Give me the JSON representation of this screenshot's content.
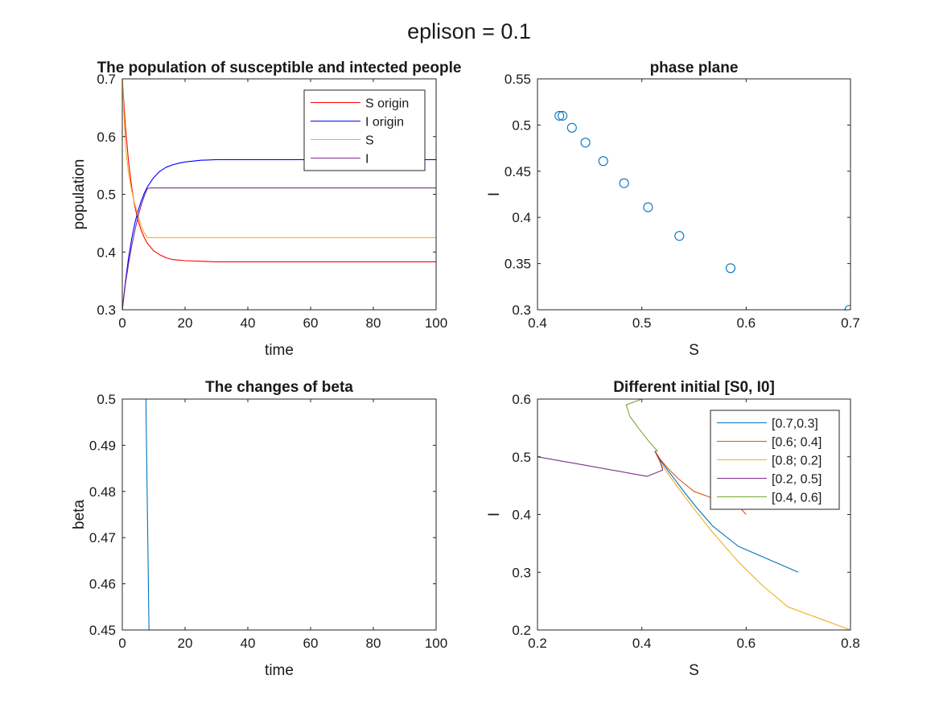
{
  "figure": {
    "title": "eplison = 0.1"
  },
  "chart_data": [
    {
      "type": "line",
      "title": "The population of susceptible and intected people",
      "xlabel": "time",
      "ylabel": "population",
      "xlim": [
        0,
        100
      ],
      "ylim": [
        0.3,
        0.7
      ],
      "xticks": [
        0,
        20,
        40,
        60,
        80,
        100
      ],
      "yticks": [
        0.3,
        0.4,
        0.5,
        0.6,
        0.7
      ],
      "grid": false,
      "legend": "top-right",
      "series": [
        {
          "name": "S origin",
          "color": "#ff0000",
          "x": [
            0,
            1,
            2,
            3,
            4,
            5,
            6,
            7,
            8,
            10,
            12,
            14,
            16,
            18,
            20,
            25,
            30,
            40,
            50,
            60,
            70,
            80,
            90,
            100
          ],
          "y": [
            0.7,
            0.617,
            0.556,
            0.512,
            0.479,
            0.455,
            0.438,
            0.425,
            0.415,
            0.402,
            0.395,
            0.39,
            0.387,
            0.386,
            0.385,
            0.384,
            0.383,
            0.383,
            0.383,
            0.383,
            0.383,
            0.383,
            0.383,
            0.383
          ]
        },
        {
          "name": "I origin",
          "color": "#0000ff",
          "x": [
            0,
            1,
            2,
            3,
            4,
            5,
            6,
            7,
            8,
            10,
            12,
            14,
            16,
            18,
            20,
            25,
            30,
            40,
            50,
            60,
            70,
            80,
            90,
            100
          ],
          "y": [
            0.3,
            0.349,
            0.39,
            0.423,
            0.45,
            0.471,
            0.488,
            0.502,
            0.513,
            0.529,
            0.54,
            0.547,
            0.551,
            0.554,
            0.556,
            0.559,
            0.56,
            0.56,
            0.56,
            0.56,
            0.56,
            0.56,
            0.56,
            0.56
          ]
        },
        {
          "name": "S",
          "color": "#edb120",
          "x": [
            0,
            1,
            2,
            3,
            4,
            5,
            6,
            7,
            8,
            9,
            10,
            20,
            40,
            60,
            80,
            100
          ],
          "y": [
            0.7,
            0.585,
            0.535,
            0.506,
            0.483,
            0.463,
            0.446,
            0.433,
            0.425,
            0.425,
            0.425,
            0.425,
            0.425,
            0.425,
            0.425,
            0.425
          ]
        },
        {
          "name": "I",
          "color": "#7e2f8e",
          "x": [
            0,
            1,
            2,
            3,
            4,
            5,
            6,
            7,
            8,
            9,
            10,
            20,
            40,
            60,
            80,
            100
          ],
          "y": [
            0.3,
            0.345,
            0.38,
            0.411,
            0.437,
            0.461,
            0.481,
            0.497,
            0.51,
            0.511,
            0.511,
            0.511,
            0.511,
            0.511,
            0.511,
            0.511
          ]
        }
      ]
    },
    {
      "type": "scatter",
      "title": "phase plane",
      "xlabel": "S",
      "ylabel": "I",
      "xlim": [
        0.4,
        0.7
      ],
      "ylim": [
        0.3,
        0.55
      ],
      "xticks": [
        0.4,
        0.5,
        0.6,
        0.7
      ],
      "yticks": [
        0.3,
        0.35,
        0.4,
        0.45,
        0.5,
        0.55
      ],
      "grid": false,
      "series": [
        {
          "color": "#0072bd",
          "x": [
            0.699,
            0.585,
            0.536,
            0.506,
            0.483,
            0.463,
            0.446,
            0.433,
            0.424,
            0.421
          ],
          "y": [
            0.3,
            0.345,
            0.38,
            0.411,
            0.437,
            0.461,
            0.481,
            0.497,
            0.51,
            0.51
          ]
        }
      ]
    },
    {
      "type": "line",
      "title": "The changes of beta",
      "xlabel": "time",
      "ylabel": "beta",
      "xlim": [
        0,
        100
      ],
      "ylim": [
        0.45,
        0.5
      ],
      "xticks": [
        0,
        20,
        40,
        60,
        80,
        100
      ],
      "yticks": [
        0.45,
        0.46,
        0.47,
        0.48,
        0.49,
        0.5
      ],
      "grid": false,
      "series": [
        {
          "color": "#0072bd",
          "x": [
            0,
            7.5,
            8.5,
            100
          ],
          "y": [
            0.5,
            0.5,
            0.45,
            0.45
          ]
        }
      ]
    },
    {
      "type": "line",
      "title": "Different initial [S0, I0]",
      "xlabel": "S",
      "ylabel": "I",
      "xlim": [
        0.2,
        0.8
      ],
      "ylim": [
        0.2,
        0.6
      ],
      "xticks": [
        0.2,
        0.4,
        0.6,
        0.8
      ],
      "yticks": [
        0.2,
        0.3,
        0.4,
        0.5,
        0.6
      ],
      "grid": false,
      "legend": "top-right",
      "series": [
        {
          "name": "[0.7,0.3]",
          "color": "#0072bd",
          "x": [
            0.7,
            0.585,
            0.536,
            0.506,
            0.483,
            0.463,
            0.446,
            0.433,
            0.425
          ],
          "y": [
            0.3,
            0.345,
            0.38,
            0.411,
            0.437,
            0.461,
            0.481,
            0.497,
            0.51
          ]
        },
        {
          "name": "[0.6; 0.4]",
          "color": "#d95319",
          "x": [
            0.6,
            0.58,
            0.54,
            0.5,
            0.47,
            0.45,
            0.435,
            0.425
          ],
          "y": [
            0.4,
            0.42,
            0.427,
            0.44,
            0.462,
            0.48,
            0.496,
            0.51
          ]
        },
        {
          "name": "[0.8; 0.2]",
          "color": "#edb120",
          "x": [
            0.8,
            0.68,
            0.63,
            0.585,
            0.535,
            0.5,
            0.47,
            0.45,
            0.435,
            0.425
          ],
          "y": [
            0.2,
            0.24,
            0.278,
            0.318,
            0.37,
            0.41,
            0.446,
            0.471,
            0.49,
            0.51
          ]
        },
        {
          "name": "[0.2, 0.5]",
          "color": "#7e2f8e",
          "x": [
            0.2,
            0.3,
            0.41,
            0.44,
            0.435,
            0.425
          ],
          "y": [
            0.5,
            0.484,
            0.466,
            0.477,
            0.493,
            0.51
          ]
        },
        {
          "name": "[0.4, 0.6]",
          "color": "#77ac30",
          "x": [
            0.4,
            0.37,
            0.377,
            0.395,
            0.415,
            0.43,
            0.425
          ],
          "y": [
            0.6,
            0.59,
            0.57,
            0.548,
            0.525,
            0.51,
            0.51
          ]
        }
      ]
    }
  ]
}
